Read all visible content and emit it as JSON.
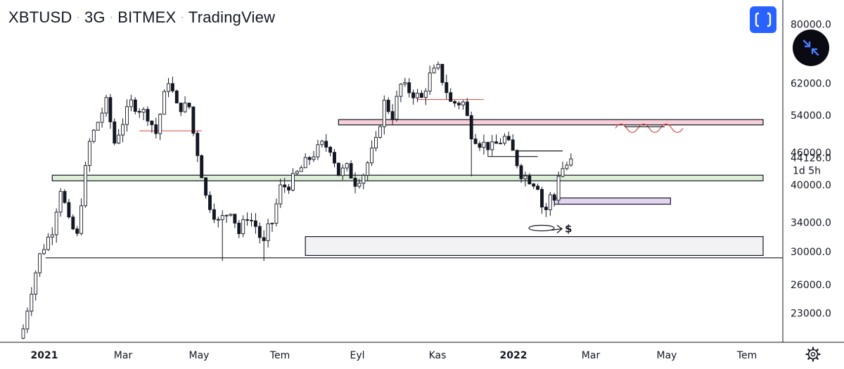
{
  "header": {
    "symbol": "XBTUSD",
    "interval": "3G",
    "exchange": "BITMEX",
    "platform": "TradingView",
    "separator": "·"
  },
  "icons": {
    "fullscreen": "fullscreen-icon",
    "collapse": "collapse-arrows-icon",
    "settings": "gear-icon"
  },
  "colors": {
    "up_candle": "#ffffff",
    "down_candle": "#131722",
    "candle_outline": "#131722",
    "accent": "#2962ff",
    "green_zone": "#dcefd6",
    "pink_zone": "#f6cfd8",
    "purple_zone": "#e3d4f0",
    "grey_zone": "#f2f2f4",
    "red_annotation": "#d64545"
  },
  "chart_data": {
    "type": "candlestick",
    "y_scale": "log",
    "ylim": [
      19500,
      84000
    ],
    "price_axis_labels": [
      "80000.0",
      "62000.0",
      "54000.0",
      "46000.0",
      "40000.0",
      "34000.0",
      "30000.0",
      "26000.0",
      "23000.0"
    ],
    "last_price_label": "44126.0",
    "countdown_label": "1d 5h",
    "time_axis_labels": [
      {
        "text": "2021",
        "bold": true
      },
      {
        "text": "Mar",
        "bold": false
      },
      {
        "text": "May",
        "bold": false
      },
      {
        "text": "Tem",
        "bold": false
      },
      {
        "text": "Eyl",
        "bold": false
      },
      {
        "text": "Kas",
        "bold": false
      },
      {
        "text": "2022",
        "bold": true
      },
      {
        "text": "Mar",
        "bold": false
      },
      {
        "text": "May",
        "bold": false
      },
      {
        "text": "Tem",
        "bold": false
      }
    ],
    "anchors": [
      [
        0,
        21500
      ],
      [
        4,
        29500
      ],
      [
        7,
        33000
      ],
      [
        9,
        39500
      ],
      [
        11,
        34000
      ],
      [
        13,
        32000
      ],
      [
        16,
        48000
      ],
      [
        20,
        57000
      ],
      [
        22,
        48000
      ],
      [
        26,
        57000
      ],
      [
        30,
        54000
      ],
      [
        32,
        50000
      ],
      [
        35,
        63000
      ],
      [
        37,
        56000
      ],
      [
        40,
        56000
      ],
      [
        41,
        50000
      ],
      [
        44,
        38000
      ],
      [
        47,
        34000
      ],
      [
        50,
        36000
      ],
      [
        52,
        32500
      ],
      [
        54,
        35000
      ],
      [
        56,
        33500
      ],
      [
        57,
        32000
      ],
      [
        58,
        31000
      ],
      [
        59,
        33000
      ],
      [
        60,
        34000
      ],
      [
        62,
        39500
      ],
      [
        64,
        40000
      ],
      [
        68,
        44000
      ],
      [
        72,
        47500
      ],
      [
        74,
        47000
      ],
      [
        76,
        42000
      ],
      [
        78,
        43000
      ],
      [
        80,
        40500
      ],
      [
        82,
        42000
      ],
      [
        85,
        48000
      ],
      [
        87,
        57000
      ],
      [
        89,
        54000
      ],
      [
        91,
        61500
      ],
      [
        93,
        60000
      ],
      [
        96,
        58000
      ],
      [
        98,
        64000
      ],
      [
        100,
        66000
      ],
      [
        103,
        57000
      ],
      [
        106,
        57000
      ],
      [
        108,
        50000
      ],
      [
        110,
        48000
      ],
      [
        113,
        47000
      ],
      [
        116,
        49000
      ],
      [
        118,
        46000
      ],
      [
        120,
        42000
      ],
      [
        122,
        41000
      ],
      [
        124,
        40000
      ],
      [
        125,
        36500
      ],
      [
        126,
        36000
      ],
      [
        127,
        38000
      ],
      [
        128,
        37500
      ],
      [
        129,
        42000
      ],
      [
        130,
        43000
      ],
      [
        132,
        44126
      ]
    ],
    "zones": [
      {
        "name": "pink-supply-zone",
        "from_candle": 76,
        "to_candle": "end",
        "price_low": 51800,
        "price_high": 53000
      },
      {
        "name": "green-support-zone",
        "from_candle": 7,
        "to_candle": "end",
        "price_low": 40700,
        "price_high": 41700
      },
      {
        "name": "purple-zone",
        "from_candle": 128,
        "to_candle": 156,
        "price_low": 36800,
        "price_high": 37800
      },
      {
        "name": "grey-demand-zone",
        "from_candle": 68,
        "to_candle": "end",
        "price_low": 29500,
        "price_high": 32000
      }
    ],
    "horizontal_lines": [
      {
        "name": "support-line-29000",
        "price": 29200
      },
      {
        "name": "black-step-line-1",
        "price": 46300
      },
      {
        "name": "black-step-line-2",
        "price": 45200
      }
    ],
    "annotations": [
      {
        "type": "text",
        "text": "$"
      }
    ]
  }
}
